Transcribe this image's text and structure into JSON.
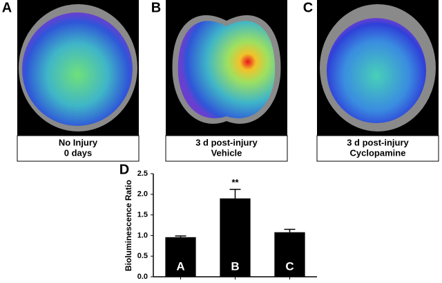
{
  "panels": [
    {
      "label": "A",
      "caption": [
        "No Injury",
        "0 days"
      ]
    },
    {
      "label": "B",
      "caption": [
        "3 d post-injury",
        "Vehicle"
      ]
    },
    {
      "label": "C",
      "caption": [
        "3 d post-injury",
        "Cyclopamine"
      ]
    }
  ],
  "chart_data": {
    "type": "bar",
    "panel_label": "D",
    "y_label": "Bioluminescence Ratio",
    "categories": [
      "A",
      "B",
      "C"
    ],
    "values": [
      0.96,
      1.9,
      1.08
    ],
    "errors": [
      0.03,
      0.22,
      0.07
    ],
    "color": "#000000",
    "annotation": "**",
    "ylim": [
      0,
      2.5
    ],
    "yticks": [
      {
        "value": 0,
        "label": "0.0"
      },
      0.5,
      {
        "value": 1,
        "label": "1.0"
      },
      1.5,
      {
        "value": 2,
        "label": "2.0"
      },
      2.5
    ]
  }
}
